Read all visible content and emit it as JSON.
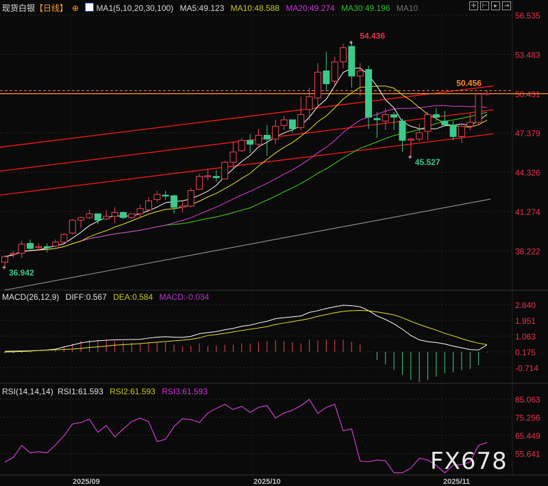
{
  "header": {
    "symbol": "现货白银",
    "period": "【日线】",
    "ma_label": "MA1(5,10,20,30,100)",
    "ma5": "MA5:49.123",
    "ma10": "MA10:48.588",
    "ma20": "MA20:49.274",
    "ma30": "MA30:49.196",
    "ma_extra": "MA10"
  },
  "toolbar": {
    "icons": [
      "crosshair-icon",
      "zoom-left-icon",
      "play-icon",
      "exit-icon"
    ]
  },
  "macd_header": {
    "label": "MACD(26,12,9)",
    "diff": "DIFF:0.567",
    "dea": "DEA:0.584",
    "macd": "MACD:-0.034"
  },
  "rsi_header": {
    "label": "RSI(14,14,14)",
    "rsi1": "RSI1:61.593",
    "rsi2": "RSI2:61.593",
    "rsi3": "RSI3:61.593"
  },
  "watermark": "FX678",
  "colors": {
    "up": "#f04458",
    "down": "#3dc98a",
    "ma5": "#ffffff",
    "ma10": "#e6e626",
    "ma20": "#e040e0",
    "ma30": "#44d81c",
    "ma100": "#8a8a8a",
    "axis": "#e8334a",
    "trend": "#ff1a1a",
    "level": "#ff8c28"
  },
  "chart_data": {
    "type": "candlestick",
    "price_axis": {
      "ticks": [
        "56.535",
        "53.483",
        "50.431",
        "47.379",
        "44.326",
        "41.274",
        "38.222"
      ],
      "ylim": [
        36.0,
        56.9
      ]
    },
    "x_labels": [
      {
        "label": "2025/09",
        "index": 8
      },
      {
        "label": "2025/10",
        "index": 29.5
      },
      {
        "label": "2025/11",
        "index": 52
      }
    ],
    "candles_ohlc": [
      [
        37.34,
        37.87,
        36.942,
        37.77
      ],
      [
        37.98,
        38.2,
        37.7,
        38.02
      ],
      [
        38.04,
        39.0,
        37.66,
        38.74
      ],
      [
        38.8,
        39.1,
        38.3,
        38.4
      ],
      [
        38.5,
        38.8,
        38.2,
        38.55
      ],
      [
        38.55,
        38.8,
        38.1,
        38.5
      ],
      [
        38.6,
        39.1,
        38.5,
        38.9
      ],
      [
        38.9,
        39.6,
        38.8,
        39.5
      ],
      [
        39.6,
        40.7,
        39.5,
        40.6
      ],
      [
        40.6,
        40.9,
        40.0,
        40.8
      ],
      [
        40.8,
        41.4,
        40.7,
        41.1
      ],
      [
        41.1,
        41.1,
        40.3,
        40.6
      ],
      [
        40.7,
        41.4,
        40.6,
        40.9
      ],
      [
        40.9,
        41.6,
        40.4,
        41.2
      ],
      [
        41.2,
        41.3,
        40.7,
        40.8
      ],
      [
        40.8,
        41.1,
        40.7,
        41.1
      ],
      [
        41.1,
        41.8,
        40.8,
        41.5
      ],
      [
        41.4,
        42.4,
        41.3,
        42.1
      ],
      [
        42.2,
        42.9,
        42.0,
        42.6
      ],
      [
        42.55,
        42.9,
        42.2,
        42.5
      ],
      [
        42.5,
        42.6,
        41.1,
        41.6
      ],
      [
        41.6,
        42.1,
        41.2,
        41.7
      ],
      [
        41.7,
        43.1,
        41.6,
        42.9
      ],
      [
        43.0,
        44.2,
        43.0,
        44.0
      ],
      [
        44.0,
        44.6,
        43.7,
        44.05
      ],
      [
        44.0,
        44.5,
        43.6,
        43.9
      ],
      [
        43.8,
        45.2,
        43.8,
        45.1
      ],
      [
        45.1,
        46.7,
        44.6,
        45.9
      ],
      [
        46.0,
        47.0,
        45.9,
        46.8
      ],
      [
        46.8,
        47.3,
        45.8,
        46.5
      ],
      [
        46.5,
        47.7,
        46.3,
        47.2
      ],
      [
        47.2,
        48.0,
        45.6,
        46.9
      ],
      [
        46.9,
        48.4,
        46.5,
        47.9
      ],
      [
        47.96,
        48.7,
        47.6,
        48.4
      ],
      [
        48.4,
        48.4,
        47.4,
        47.7
      ],
      [
        47.8,
        50.2,
        47.6,
        48.8
      ],
      [
        49.2,
        50.9,
        48.4,
        50.2
      ],
      [
        50.1,
        52.8,
        49.5,
        52.1
      ],
      [
        52.2,
        53.7,
        50.6,
        51.2
      ],
      [
        51.4,
        53.3,
        51.1,
        52.9
      ],
      [
        52.9,
        54.3,
        52.4,
        54.0
      ],
      [
        54.1,
        54.436,
        50.9,
        51.8
      ],
      [
        51.8,
        52.8,
        50.2,
        52.2
      ],
      [
        52.3,
        52.6,
        47.7,
        48.6
      ],
      [
        48.5,
        49.0,
        47.0,
        48.4
      ],
      [
        48.3,
        49.3,
        47.6,
        48.8
      ],
      [
        48.8,
        49.0,
        47.6,
        48.6
      ],
      [
        48.3,
        48.5,
        45.9,
        46.8
      ],
      [
        46.9,
        47.0,
        45.527,
        46.9
      ],
      [
        46.9,
        48.1,
        46.7,
        47.4
      ],
      [
        47.5,
        49.0,
        46.8,
        48.8
      ],
      [
        48.8,
        49.3,
        48.3,
        48.6
      ],
      [
        48.3,
        49.1,
        47.9,
        48.0
      ],
      [
        48.0,
        48.3,
        46.8,
        47.1
      ],
      [
        47.1,
        48.1,
        46.6,
        47.9
      ],
      [
        47.9,
        48.9,
        47.6,
        48.2
      ],
      [
        48.2,
        50.5,
        48.0,
        50.4
      ],
      [
        50.43,
        50.7,
        50.3,
        50.456
      ]
    ],
    "ma100": {
      "first": 35.17,
      "last": 42.24
    },
    "annotations": [
      {
        "label": "54.436",
        "index": 41,
        "kind": "high"
      },
      {
        "label": "45.527",
        "index": 48,
        "kind": "low"
      },
      {
        "label": "36.942",
        "index": 0,
        "kind": "low"
      },
      {
        "label": "50.456",
        "index": 57,
        "kind": "last"
      }
    ],
    "levels": [
      {
        "value": 50.431,
        "style": "solid"
      },
      {
        "value": 50.456,
        "style": "dashed"
      }
    ],
    "trendlines": [
      {
        "from": [
          0,
          46.27
        ],
        "to": [
          58,
          51.03
        ]
      },
      {
        "from": [
          0,
          44.41
        ],
        "to": [
          58,
          49.17
        ]
      },
      {
        "from": [
          0,
          42.55
        ],
        "to": [
          58,
          47.31
        ]
      }
    ],
    "macd": {
      "ticks": [
        "2.840",
        "1.951",
        "1.063",
        "0.175",
        "-0.714"
      ],
      "diff": [
        0.17,
        0.18,
        0.2,
        0.22,
        0.25,
        0.28,
        0.33,
        0.45,
        0.56,
        0.68,
        0.75,
        0.8,
        0.83,
        0.85,
        0.86,
        0.87,
        0.88,
        0.95,
        1.0,
        1.03,
        1.0,
        0.99,
        1.05,
        1.2,
        1.26,
        1.32,
        1.42,
        1.5,
        1.62,
        1.68,
        1.8,
        1.9,
        2.05,
        2.1,
        2.15,
        2.2,
        2.4,
        2.5,
        2.62,
        2.72,
        2.8,
        2.78,
        2.72,
        2.5,
        2.2,
        2.0,
        1.75,
        1.45,
        1.1,
        0.85,
        0.75,
        0.7,
        0.62,
        0.5,
        0.4,
        0.3,
        0.28,
        0.567
      ],
      "dea": [
        0.21,
        0.22,
        0.23,
        0.24,
        0.25,
        0.27,
        0.29,
        0.31,
        0.33,
        0.37,
        0.42,
        0.46,
        0.5,
        0.55,
        0.58,
        0.61,
        0.64,
        0.68,
        0.72,
        0.76,
        0.8,
        0.83,
        0.88,
        0.96,
        1.1,
        1.15,
        1.22,
        1.3,
        1.38,
        1.45,
        1.52,
        1.6,
        1.72,
        1.8,
        1.88,
        1.96,
        2.05,
        2.18,
        2.28,
        2.38,
        2.46,
        2.5,
        2.51,
        2.49,
        2.43,
        2.35,
        2.26,
        2.1,
        1.9,
        1.72,
        1.55,
        1.4,
        1.22,
        1.08,
        0.92,
        0.78,
        0.66,
        0.584
      ]
    },
    "rsi": {
      "ticks": [
        "85.063",
        "75.256",
        "65.449",
        "55.641"
      ],
      "values": [
        51.0,
        53.5,
        60.0,
        56.0,
        56.6,
        56.0,
        60.3,
        65.2,
        71.6,
        72.4,
        74.2,
        67.1,
        70.8,
        64.6,
        68.9,
        72.9,
        74.8,
        72.9,
        62.1,
        63.3,
        70.2,
        74.4,
        74.0,
        72.4,
        77.5,
        80.0,
        82.2,
        79.4,
        81.2,
        77.8,
        80.6,
        81.6,
        74.8,
        77.5,
        79.0,
        81.5,
        84.9,
        77.3,
        80.6,
        82.2,
        67.9,
        68.9,
        51.6,
        51.2,
        52.1,
        51.7,
        45.2,
        45.2,
        47.7,
        53.1,
        52.1,
        49.2,
        45.2,
        49.4,
        49.6,
        51.0,
        60.0,
        61.593
      ]
    }
  }
}
